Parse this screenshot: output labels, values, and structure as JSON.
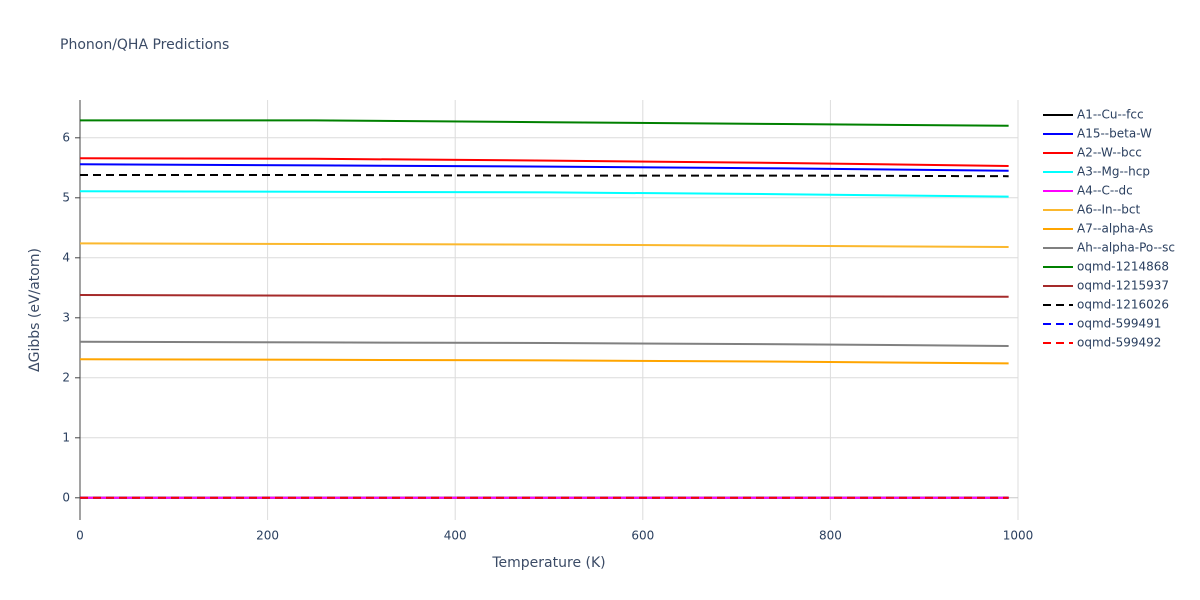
{
  "chart_data": {
    "type": "line",
    "title": "Phonon/QHA Predictions",
    "x_label": "Temperature (K)",
    "y_label": "ΔGibbs (eV/atom)",
    "x": [
      0,
      250,
      500,
      750,
      990
    ],
    "xlim": [
      0,
      1000
    ],
    "xticks": [
      0,
      200,
      400,
      600,
      800,
      1000
    ],
    "ylim": [
      -0.37,
      6.63
    ],
    "yticks": [
      0,
      1,
      2,
      3,
      4,
      5,
      6
    ],
    "grid": true,
    "series": [
      {
        "name": "A1--Cu--fcc",
        "color": "#000000",
        "dash": "solid",
        "values": [
          0,
          0,
          0,
          0,
          0
        ]
      },
      {
        "name": "A15--beta-W",
        "color": "#0000ff",
        "dash": "solid",
        "values": [
          5.56,
          5.54,
          5.52,
          5.49,
          5.45
        ]
      },
      {
        "name": "A2--W--bcc",
        "color": "#ff0000",
        "dash": "solid",
        "values": [
          5.66,
          5.65,
          5.62,
          5.58,
          5.53
        ]
      },
      {
        "name": "A3--Mg--hcp",
        "color": "#00ffff",
        "dash": "solid",
        "values": [
          5.11,
          5.1,
          5.09,
          5.06,
          5.02
        ]
      },
      {
        "name": "A4--C--dc",
        "color": "#ff00ff",
        "dash": "solid",
        "values": [
          0,
          0,
          0,
          0,
          0
        ]
      },
      {
        "name": "A6--In--bct",
        "color": "#fbb82e",
        "dash": "solid",
        "values": [
          4.24,
          4.23,
          4.22,
          4.2,
          4.18
        ]
      },
      {
        "name": "A7--alpha-As",
        "color": "#ffa500",
        "dash": "solid",
        "values": [
          2.31,
          2.3,
          2.29,
          2.27,
          2.24
        ]
      },
      {
        "name": "Ah--alpha-Po--sc",
        "color": "#808080",
        "dash": "solid",
        "values": [
          2.6,
          2.59,
          2.58,
          2.56,
          2.53
        ]
      },
      {
        "name": "oqmd-1214868",
        "color": "#008000",
        "dash": "solid",
        "values": [
          6.29,
          6.29,
          6.26,
          6.23,
          6.2
        ]
      },
      {
        "name": "oqmd-1215937",
        "color": "#a52a2a",
        "dash": "solid",
        "values": [
          3.38,
          3.37,
          3.36,
          3.36,
          3.35
        ]
      },
      {
        "name": "oqmd-1216026",
        "color": "#000000",
        "dash": "dash",
        "values": [
          5.38,
          5.38,
          5.37,
          5.37,
          5.36
        ]
      },
      {
        "name": "oqmd-599491",
        "color": "#0000ff",
        "dash": "dash",
        "values": [
          0,
          0,
          0,
          0,
          0
        ]
      },
      {
        "name": "oqmd-599492",
        "color": "#ff0000",
        "dash": "dash",
        "values": [
          0,
          0,
          0,
          0,
          0
        ]
      }
    ]
  }
}
